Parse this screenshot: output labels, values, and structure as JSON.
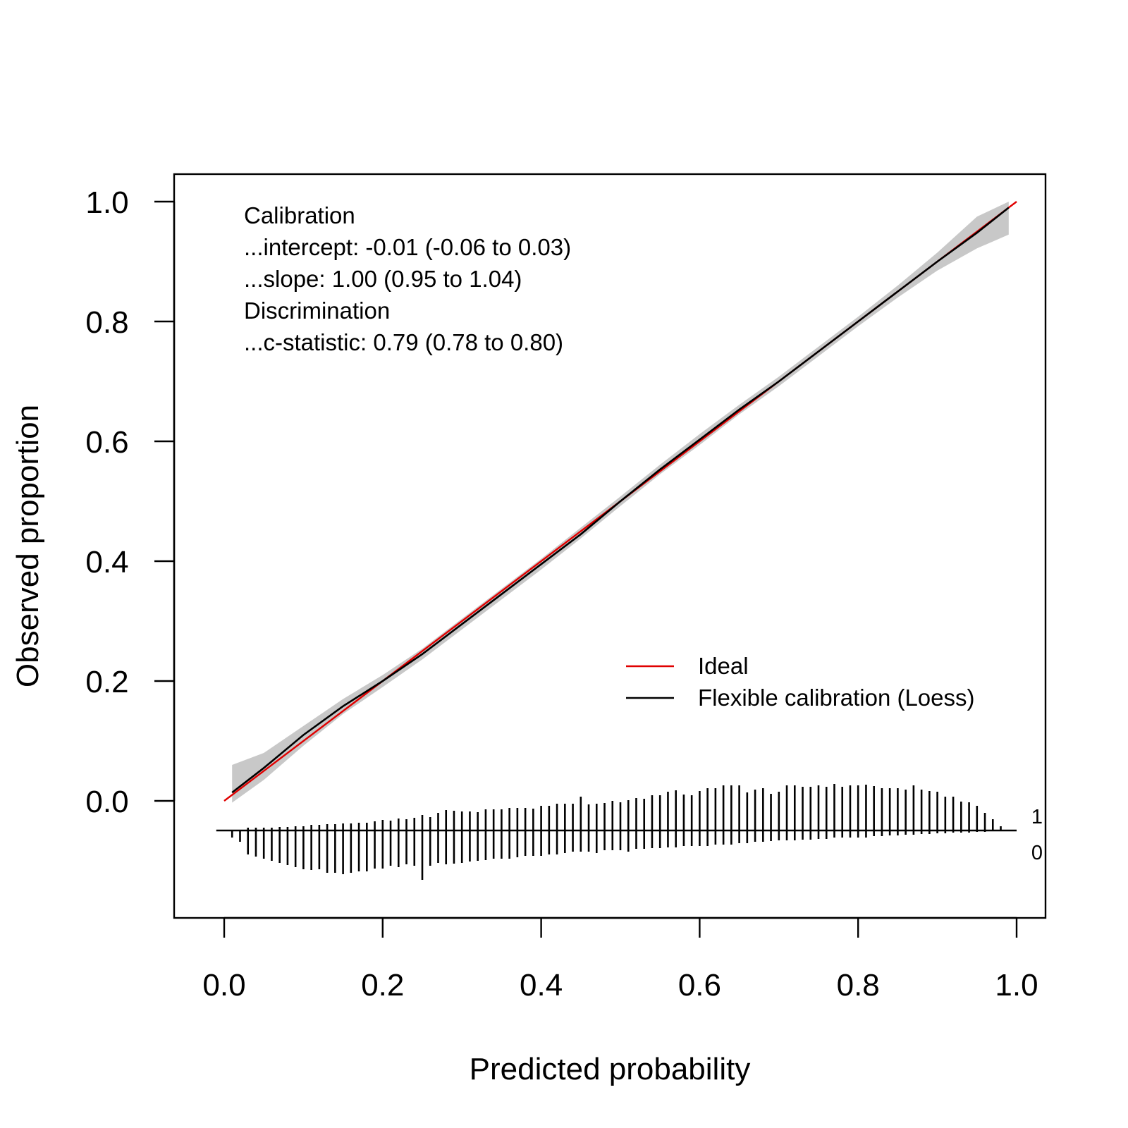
{
  "chart_data": {
    "type": "line",
    "title": "",
    "xlabel": "Predicted probability",
    "ylabel": "Observed proportion",
    "xlim": [
      0.0,
      1.0
    ],
    "ylim": [
      0.0,
      1.0
    ],
    "x_ticks": [
      "0.0",
      "0.2",
      "0.4",
      "0.6",
      "0.8",
      "1.0"
    ],
    "y_ticks": [
      "0.0",
      "0.2",
      "0.4",
      "0.6",
      "0.8",
      "1.0"
    ],
    "grid": false,
    "legend_position": "bottom-right",
    "stats_text": [
      "Calibration",
      "...intercept: -0.01 (-0.06 to 0.03)",
      "...slope: 1.00 (0.95 to 1.04)",
      "Discrimination",
      "...c-statistic: 0.79 (0.78 to 0.80)"
    ],
    "series": [
      {
        "name": "Ideal",
        "color": "#e00000",
        "x": [
          0.0,
          1.0
        ],
        "y": [
          0.0,
          1.0
        ]
      },
      {
        "name": "Flexible calibration (Loess)",
        "color": "#000000",
        "x": [
          0.01,
          0.05,
          0.1,
          0.15,
          0.2,
          0.25,
          0.3,
          0.35,
          0.4,
          0.45,
          0.5,
          0.55,
          0.6,
          0.65,
          0.7,
          0.75,
          0.8,
          0.85,
          0.9,
          0.95,
          0.99
        ],
        "y": [
          0.014,
          0.055,
          0.11,
          0.158,
          0.2,
          0.245,
          0.295,
          0.345,
          0.395,
          0.445,
          0.5,
          0.553,
          0.603,
          0.653,
          0.7,
          0.75,
          0.8,
          0.85,
          0.9,
          0.948,
          0.99
        ],
        "ci_lower": [
          -0.003,
          0.035,
          0.092,
          0.145,
          0.19,
          0.236,
          0.286,
          0.336,
          0.386,
          0.438,
          0.492,
          0.545,
          0.594,
          0.645,
          0.692,
          0.742,
          0.792,
          0.84,
          0.885,
          0.922,
          0.945
        ],
        "ci_upper": [
          0.06,
          0.08,
          0.125,
          0.17,
          0.21,
          0.254,
          0.304,
          0.354,
          0.404,
          0.456,
          0.508,
          0.561,
          0.612,
          0.661,
          0.708,
          0.758,
          0.808,
          0.86,
          0.915,
          0.975,
          1.0
        ]
      }
    ],
    "spike_histogram": {
      "labels": [
        "1",
        "0"
      ],
      "x": [
        0.01,
        0.02,
        0.03,
        0.04,
        0.05,
        0.06,
        0.07,
        0.08,
        0.09,
        0.1,
        0.11,
        0.12,
        0.13,
        0.14,
        0.15,
        0.16,
        0.17,
        0.18,
        0.19,
        0.2,
        0.21,
        0.22,
        0.23,
        0.24,
        0.25,
        0.26,
        0.27,
        0.28,
        0.29,
        0.3,
        0.31,
        0.32,
        0.33,
        0.34,
        0.35,
        0.36,
        0.37,
        0.38,
        0.39,
        0.4,
        0.41,
        0.42,
        0.43,
        0.44,
        0.45,
        0.46,
        0.47,
        0.48,
        0.49,
        0.5,
        0.51,
        0.52,
        0.53,
        0.54,
        0.55,
        0.56,
        0.57,
        0.58,
        0.59,
        0.6,
        0.61,
        0.62,
        0.63,
        0.64,
        0.65,
        0.66,
        0.67,
        0.68,
        0.69,
        0.7,
        0.71,
        0.72,
        0.73,
        0.74,
        0.75,
        0.76,
        0.77,
        0.78,
        0.79,
        0.8,
        0.81,
        0.82,
        0.83,
        0.84,
        0.85,
        0.86,
        0.87,
        0.88,
        0.89,
        0.9,
        0.91,
        0.92,
        0.93,
        0.94,
        0.95,
        0.96,
        0.97,
        0.98
      ],
      "events": [
        0.0,
        0.001,
        0.004,
        0.004,
        0.004,
        0.004,
        0.005,
        0.005,
        0.006,
        0.006,
        0.008,
        0.008,
        0.009,
        0.009,
        0.01,
        0.01,
        0.011,
        0.011,
        0.013,
        0.015,
        0.014,
        0.017,
        0.016,
        0.018,
        0.022,
        0.019,
        0.025,
        0.029,
        0.028,
        0.027,
        0.027,
        0.026,
        0.03,
        0.03,
        0.03,
        0.032,
        0.032,
        0.032,
        0.031,
        0.035,
        0.035,
        0.038,
        0.038,
        0.038,
        0.048,
        0.037,
        0.038,
        0.039,
        0.042,
        0.04,
        0.043,
        0.046,
        0.045,
        0.05,
        0.05,
        0.055,
        0.057,
        0.051,
        0.05,
        0.056,
        0.06,
        0.06,
        0.064,
        0.064,
        0.064,
        0.054,
        0.058,
        0.06,
        0.052,
        0.055,
        0.064,
        0.064,
        0.062,
        0.062,
        0.064,
        0.062,
        0.066,
        0.062,
        0.064,
        0.064,
        0.065,
        0.063,
        0.06,
        0.06,
        0.06,
        0.058,
        0.064,
        0.058,
        0.056,
        0.055,
        0.048,
        0.048,
        0.041,
        0.04,
        0.035,
        0.025,
        0.016,
        0.006
      ],
      "nonevents": [
        0.01,
        0.016,
        0.034,
        0.037,
        0.04,
        0.043,
        0.046,
        0.049,
        0.052,
        0.055,
        0.056,
        0.055,
        0.06,
        0.06,
        0.062,
        0.06,
        0.058,
        0.058,
        0.054,
        0.054,
        0.05,
        0.052,
        0.048,
        0.05,
        0.07,
        0.05,
        0.046,
        0.048,
        0.047,
        0.046,
        0.044,
        0.043,
        0.042,
        0.04,
        0.04,
        0.04,
        0.038,
        0.036,
        0.036,
        0.036,
        0.034,
        0.034,
        0.032,
        0.03,
        0.03,
        0.03,
        0.032,
        0.028,
        0.028,
        0.028,
        0.03,
        0.026,
        0.026,
        0.025,
        0.025,
        0.024,
        0.024,
        0.022,
        0.022,
        0.022,
        0.022,
        0.02,
        0.02,
        0.02,
        0.018,
        0.018,
        0.016,
        0.016,
        0.015,
        0.014,
        0.014,
        0.014,
        0.013,
        0.013,
        0.012,
        0.012,
        0.01,
        0.01,
        0.01,
        0.01,
        0.01,
        0.008,
        0.008,
        0.007,
        0.007,
        0.006,
        0.006,
        0.005,
        0.005,
        0.004,
        0.004,
        0.003,
        0.003,
        0.003,
        0.002,
        0.002,
        0.001,
        0.001
      ]
    }
  }
}
